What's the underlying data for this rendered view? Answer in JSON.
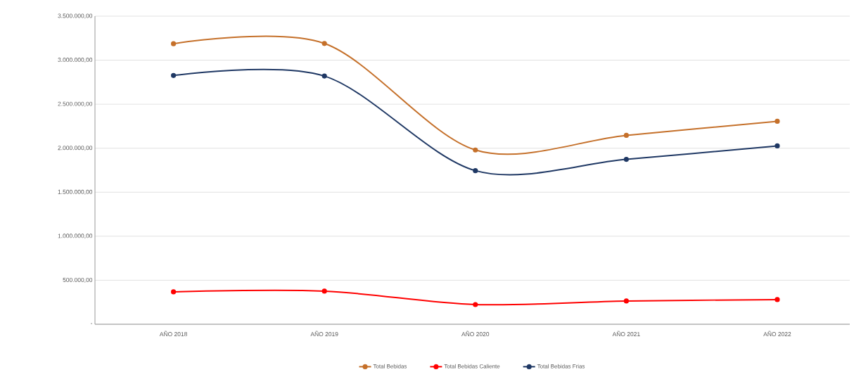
{
  "chart_data": {
    "type": "line",
    "categories": [
      "AÑO 2018",
      "AÑO 2019",
      "AÑO 2020",
      "AÑO 2021",
      "AÑO 2022"
    ],
    "series": [
      {
        "name": "Total Bebidas",
        "color": "#c5702a",
        "values": [
          3187000,
          3190000,
          1980000,
          2146000,
          2306000
        ]
      },
      {
        "name": "Total Bebidas Caliente",
        "color": "#ff0000",
        "values": [
          368000,
          376000,
          224000,
          264000,
          280000
        ]
      },
      {
        "name": "Total Bebidas Frias",
        "color": "#1f3864",
        "values": [
          2826000,
          2820000,
          1745000,
          1873000,
          2026000
        ]
      }
    ],
    "ylim": [
      0,
      3500000
    ],
    "yticks": [
      {
        "value": 0,
        "label": "-"
      },
      {
        "value": 500000,
        "label": "500.000,00"
      },
      {
        "value": 1000000,
        "label": "1.000.000,00"
      },
      {
        "value": 1500000,
        "label": "1.500.000,00"
      },
      {
        "value": 2000000,
        "label": "2.000.000,00"
      },
      {
        "value": 2500000,
        "label": "2.500.000,00"
      },
      {
        "value": 3000000,
        "label": "3.000.000,00"
      },
      {
        "value": 3500000,
        "label": "3.500.000,00"
      }
    ],
    "grid": "y",
    "legend": "bottom",
    "marker": "circle",
    "line_style": "solid"
  }
}
